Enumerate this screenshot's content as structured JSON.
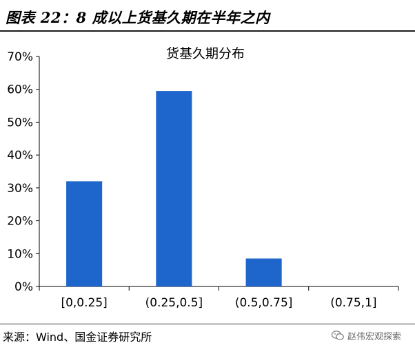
{
  "header": {
    "figure_title": "图表 22：8 成以上货基久期在半年之内"
  },
  "footer": {
    "source": "来源：Wind、国金证券研究所",
    "watermark": "赵伟宏观探索"
  },
  "colors": {
    "bar": "#1F66CC",
    "axis": "#000000"
  },
  "chart_data": {
    "type": "bar",
    "title": "货基久期分布",
    "xlabel": "",
    "ylabel": "",
    "categories": [
      "[0,0.25]",
      "(0.25,0.5]",
      "(0.5,0.75]",
      "(0.75,1]"
    ],
    "values": [
      32,
      59.5,
      8.5,
      0
    ],
    "ylim": [
      0,
      70
    ],
    "yticks": [
      0,
      10,
      20,
      30,
      40,
      50,
      60,
      70
    ],
    "ytick_labels": [
      "0%",
      "10%",
      "20%",
      "30%",
      "40%",
      "50%",
      "60%",
      "70%"
    ],
    "grid": false,
    "legend": "none"
  }
}
